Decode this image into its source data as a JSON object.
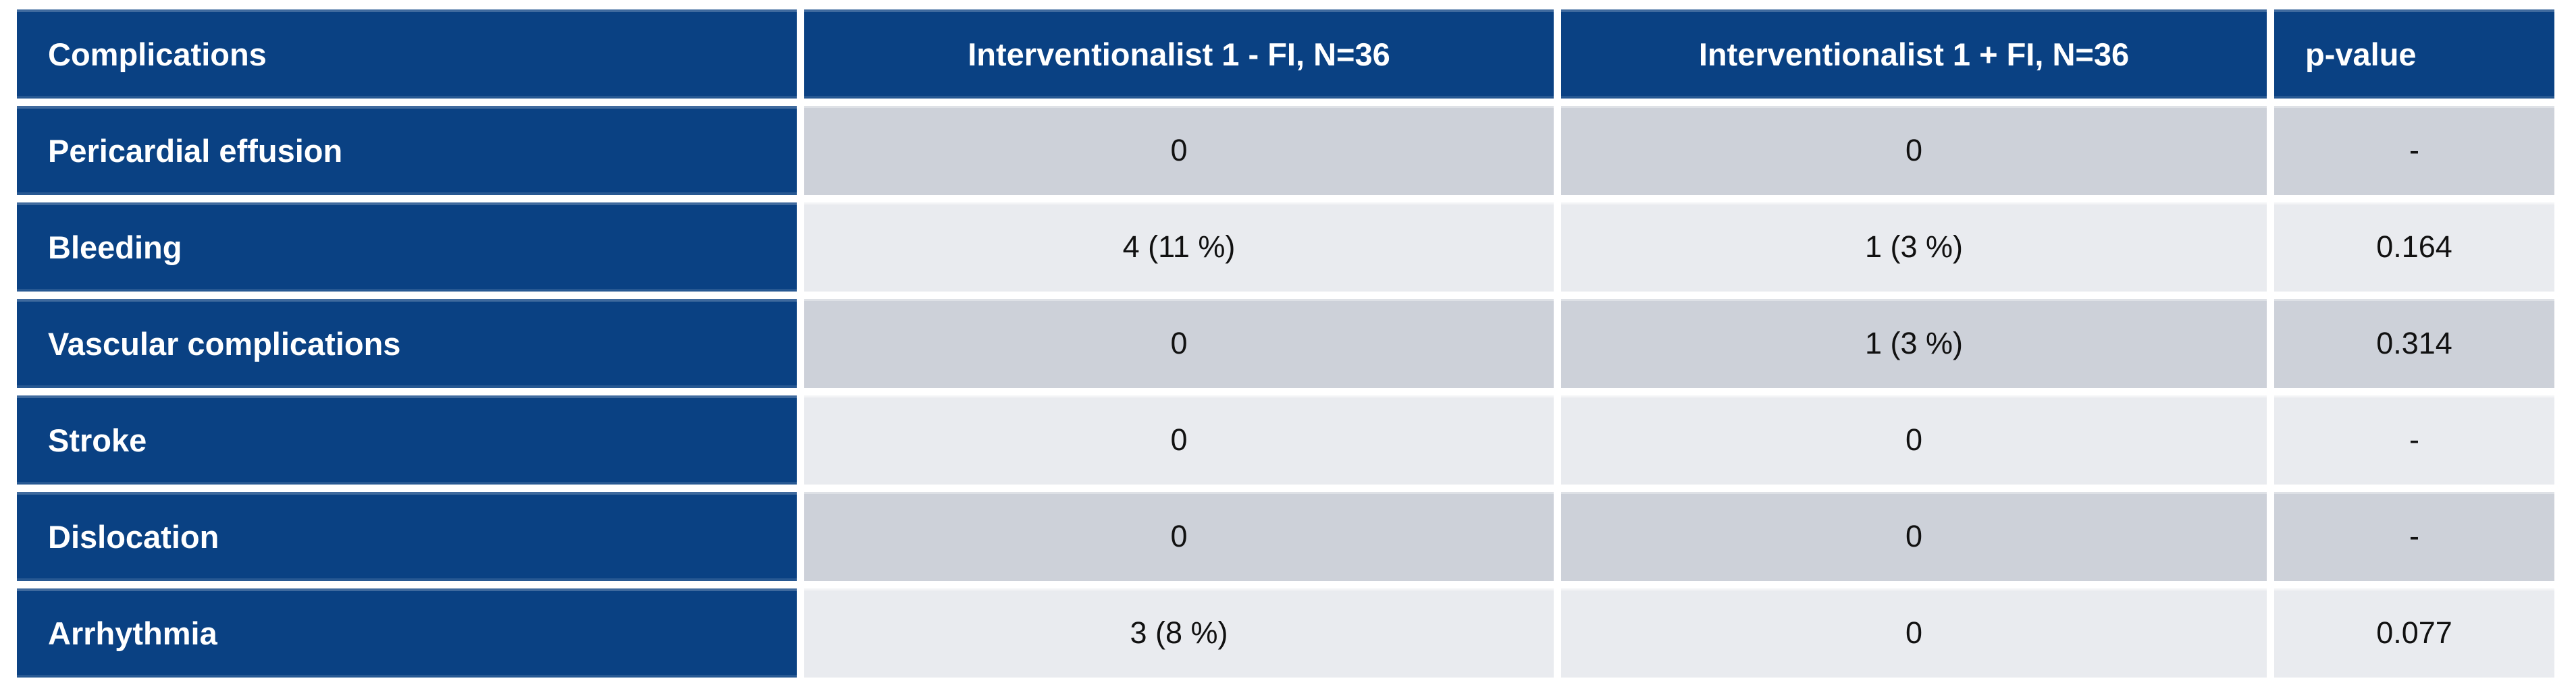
{
  "table": {
    "columns": [
      {
        "label": "Complications"
      },
      {
        "label": "Interventionalist 1 - FI, N=36"
      },
      {
        "label": "Interventionalist 1 + FI, N=36"
      },
      {
        "label": "p-value"
      }
    ],
    "rows": [
      {
        "label": "Pericardial effusion",
        "cells": [
          "0",
          "0",
          "-"
        ]
      },
      {
        "label": "Bleeding",
        "cells": [
          "4 (11 %)",
          "1 (3 %)",
          "0.164"
        ]
      },
      {
        "label": "Vascular complications",
        "cells": [
          "0",
          "1 (3 %)",
          "0.314"
        ]
      },
      {
        "label": "Stroke",
        "cells": [
          "0",
          "0",
          "-"
        ]
      },
      {
        "label": "Dislocation",
        "cells": [
          "0",
          "0",
          "-"
        ]
      },
      {
        "label": "Arrhythmia",
        "cells": [
          "3 (8 %)",
          "0",
          "0.077"
        ]
      }
    ],
    "colors": {
      "header_background": "#0A4183",
      "row_stripe_dark": "#CDD1D9",
      "row_stripe_light": "#E9EBEF",
      "header_text": "#FFFFFF",
      "cell_text": "#111111",
      "gutter": "#FFFFFF"
    }
  }
}
